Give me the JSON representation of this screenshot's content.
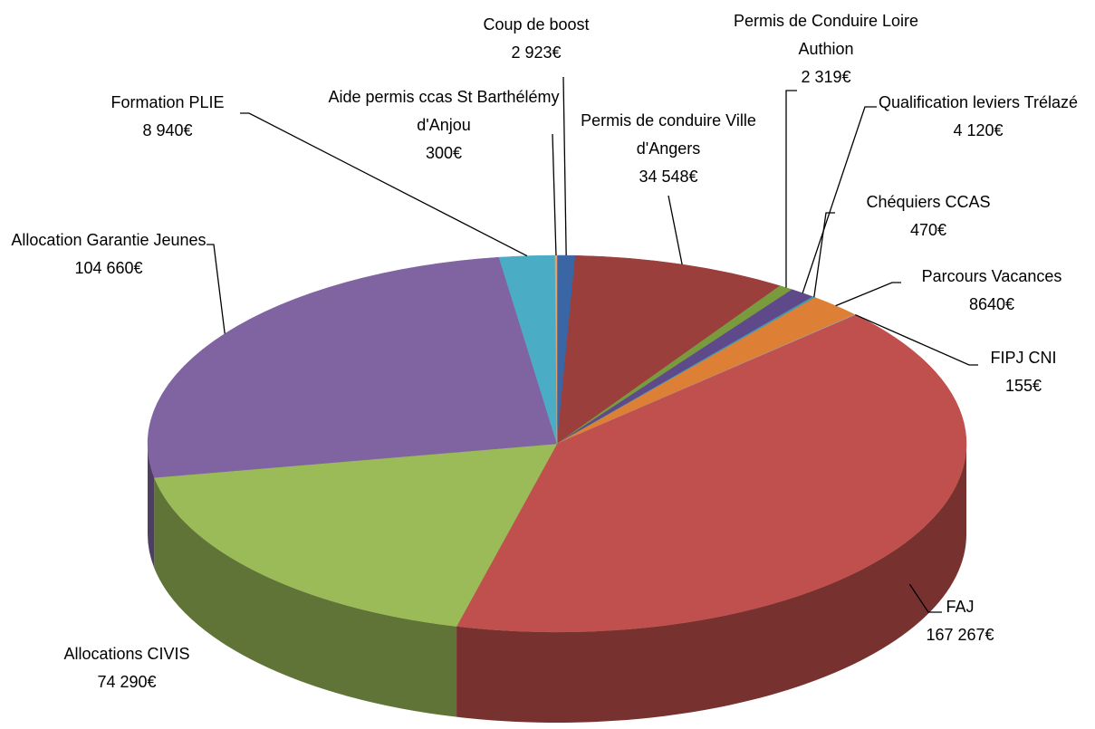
{
  "chart_data": {
    "type": "pie3d",
    "categories": [
      "Coup de boost",
      "Permis de conduire Ville d'Angers",
      "Permis de Conduire Loire Authion",
      "Qualification leviers Trélazé",
      "Chéquiers CCAS",
      "Parcours Vacances",
      "FIPJ CNI",
      "FAJ",
      "Allocations CIVIS",
      "Allocation Garantie Jeunes",
      "Formation PLIE",
      "Aide permis ccas St Barthélémy d'Anjou"
    ],
    "values": [
      2923,
      34548,
      2319,
      4120,
      470,
      8640,
      155,
      167267,
      74290,
      104660,
      8940,
      300
    ],
    "value_labels": [
      "2 923€",
      "34 548€",
      "2 319€",
      "4 120€",
      "470€",
      "8640€",
      "155€",
      "167 267€",
      "74 290€",
      "104 660€",
      "8 940€",
      "300€"
    ],
    "colors": [
      "#3a66a6",
      "#9b3f3d",
      "#7a9a3e",
      "#5e4a8a",
      "#3f9ab3",
      "#dd7f34",
      "#8fb4d8",
      "#c0504d",
      "#9bbb59",
      "#8064a2",
      "#4bacc6",
      "#e8a06a"
    ]
  }
}
